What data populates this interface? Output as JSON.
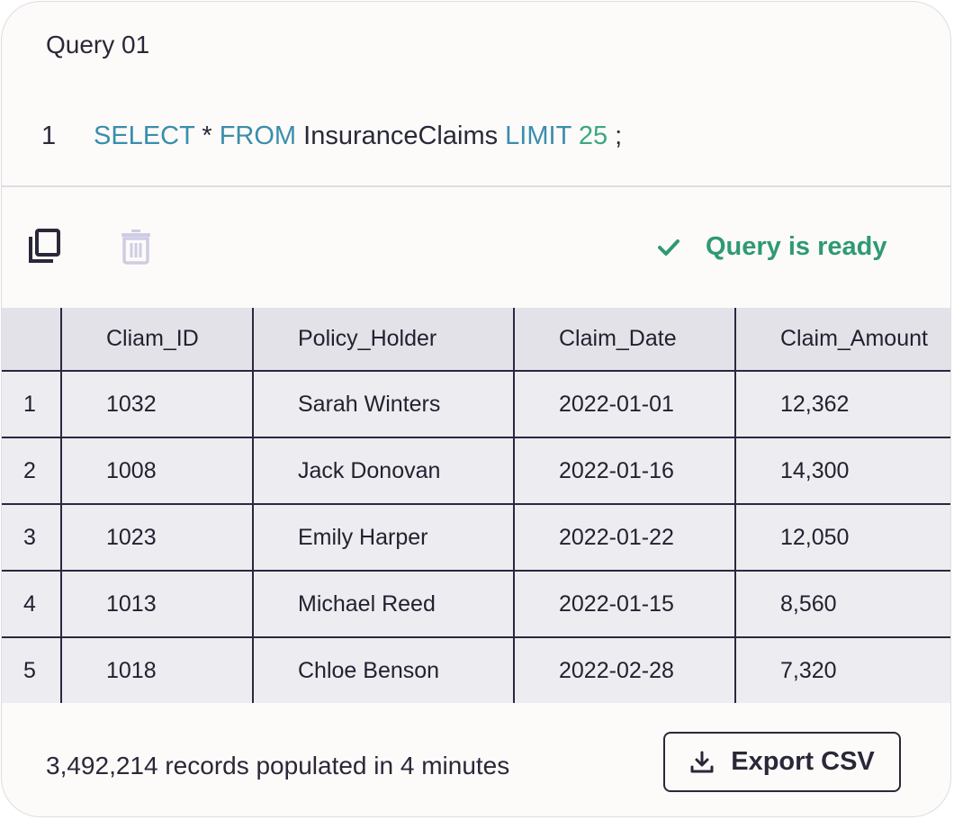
{
  "query": {
    "title": "Query 01",
    "line_number": "1",
    "tokens": {
      "select": "SELECT",
      "star": " * ",
      "from": "FROM",
      "table": " InsuranceClaims ",
      "limit": "LIMIT",
      "limit_value": " 25",
      "terminator": " ;"
    }
  },
  "toolbar": {
    "copy_icon": "copy-icon",
    "trash_icon": "trash-icon",
    "status_icon": "check-icon",
    "status_text": "Query is ready"
  },
  "table": {
    "columns": [
      "",
      "Cliam_ID",
      "Policy_Holder",
      "Claim_Date",
      "Claim_Amount"
    ],
    "rows": [
      [
        "1",
        "1032",
        "Sarah Winters",
        "2022-01-01",
        "12,362"
      ],
      [
        "2",
        "1008",
        "Jack Donovan",
        "2022-01-16",
        "14,300"
      ],
      [
        "3",
        "1023",
        "Emily Harper",
        "2022-01-22",
        "12,050"
      ],
      [
        "4",
        "1013",
        "Michael Reed",
        "2022-01-15",
        "8,560"
      ],
      [
        "5",
        "1018",
        "Chloe Benson",
        "2022-02-28",
        "7,320"
      ]
    ]
  },
  "footer": {
    "summary": "3,492,214 records populated in 4 minutes",
    "export_label": "Export CSV",
    "export_icon": "download-icon"
  },
  "colors": {
    "keyword": "#3a8dad",
    "number": "#3aa882",
    "status": "#2f9a72",
    "grid_border": "#2a2841",
    "trash_disabled": "#cfcde3"
  }
}
